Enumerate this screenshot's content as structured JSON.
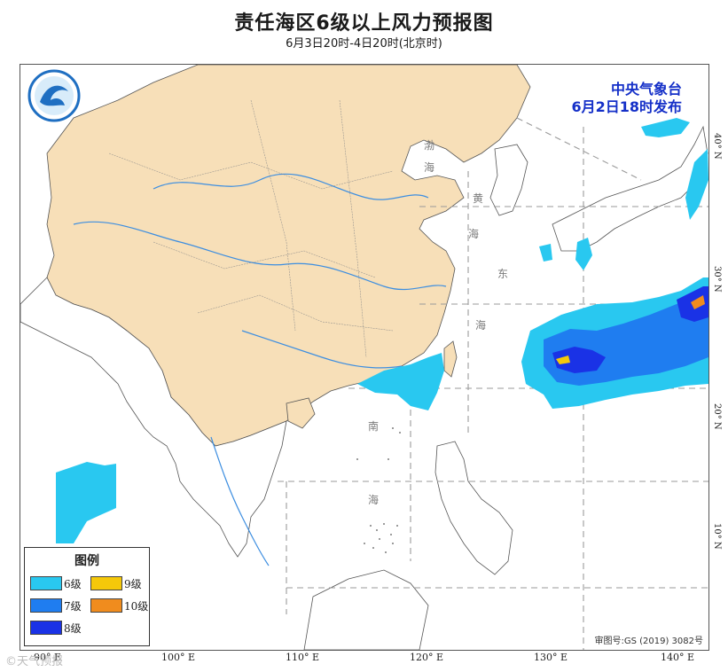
{
  "title": "责任海区6级以上风力预报图",
  "subtitle": "6月3日20时-4日20时(北京时)",
  "issuer": {
    "name": "中央气象台",
    "issued": "6月2日18时发布"
  },
  "legend": {
    "title": "图例",
    "items": [
      {
        "label": "6级",
        "color": "#29c8f0"
      },
      {
        "label": "9级",
        "color": "#f5c80a"
      },
      {
        "label": "7级",
        "color": "#1f7df0"
      },
      {
        "label": "10级",
        "color": "#f08c1e"
      },
      {
        "label": "8级",
        "color": "#1a32e6"
      }
    ]
  },
  "approval": "审图号:GS (2019) 3082号",
  "watermark": "©天气预报",
  "lon_labels": [
    "90° E",
    "100° E",
    "110° E",
    "120° E",
    "130° E",
    "140° E"
  ],
  "lat_labels": [
    "40° N",
    "30° N",
    "20° N",
    "10° N"
  ],
  "sea_labels": [
    "渤",
    "海",
    "黄",
    "海",
    "东",
    "海",
    "南",
    "海"
  ],
  "colors": {
    "land_china": "#f7dfb8",
    "land_other": "#ffffff",
    "river": "#3d8ee0",
    "border": "#555555",
    "grid": "#999999",
    "issuer_text": "#1530c8"
  }
}
